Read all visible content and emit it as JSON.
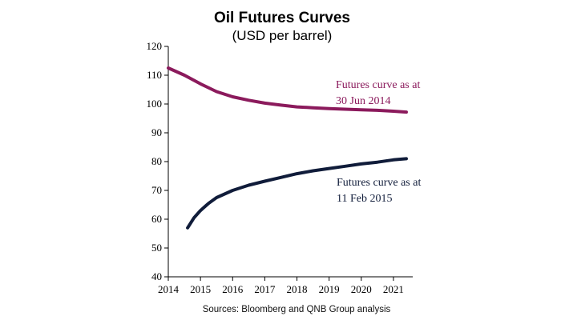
{
  "chart_data": {
    "type": "line",
    "title": "Oil Futures Curves",
    "subtitle": "(USD per barrel)",
    "source": "Sources: Bloomberg and QNB Group analysis",
    "xlim": [
      2014,
      2021.6
    ],
    "ylim": [
      40,
      120
    ],
    "x_ticks": [
      2014,
      2015,
      2016,
      2017,
      2018,
      2019,
      2020,
      2021
    ],
    "y_ticks": [
      40,
      50,
      60,
      70,
      80,
      90,
      100,
      110,
      120
    ],
    "grid": false,
    "legend": "none",
    "series": [
      {
        "name": "Futures curve as at 30 Jun 2014",
        "label_lines": [
          "Futures curve as at",
          "30 Jun 2014"
        ],
        "color": "#8b1a5c",
        "x": [
          2014.0,
          2014.5,
          2015.0,
          2015.5,
          2016.0,
          2016.5,
          2017.0,
          2017.5,
          2018.0,
          2018.5,
          2019.0,
          2019.5,
          2020.0,
          2020.5,
          2021.0,
          2021.4
        ],
        "y": [
          112.5,
          110.0,
          107.0,
          104.3,
          102.5,
          101.3,
          100.3,
          99.6,
          99.0,
          98.7,
          98.4,
          98.2,
          98.0,
          97.8,
          97.5,
          97.2
        ]
      },
      {
        "name": "Futures curve as at 11 Feb 2015",
        "label_lines": [
          "Futures curve as at",
          "11 Feb 2015"
        ],
        "color": "#101c3a",
        "x": [
          2014.6,
          2014.8,
          2015.0,
          2015.25,
          2015.5,
          2016.0,
          2016.5,
          2017.0,
          2017.5,
          2018.0,
          2018.5,
          2019.0,
          2019.5,
          2020.0,
          2020.5,
          2021.0,
          2021.4
        ],
        "y": [
          57.0,
          60.5,
          63.0,
          65.5,
          67.5,
          70.0,
          71.8,
          73.2,
          74.5,
          75.8,
          76.8,
          77.6,
          78.4,
          79.2,
          79.8,
          80.6,
          81.0
        ]
      }
    ]
  }
}
